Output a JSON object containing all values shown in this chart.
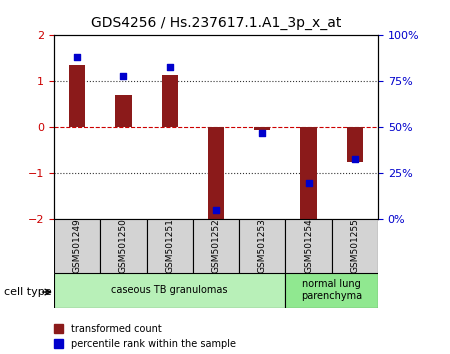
{
  "title": "GDS4256 / Hs.237617.1.A1_3p_x_at",
  "samples": [
    "GSM501249",
    "GSM501250",
    "GSM501251",
    "GSM501252",
    "GSM501253",
    "GSM501254",
    "GSM501255"
  ],
  "red_values": [
    1.35,
    0.7,
    1.15,
    -2.05,
    -0.05,
    -2.2,
    -0.75
  ],
  "blue_values": [
    88,
    78,
    83,
    5,
    47,
    20,
    33
  ],
  "ylim_left": [
    -2,
    2
  ],
  "ylim_right": [
    0,
    100
  ],
  "yticks_left": [
    -2,
    -1,
    0,
    1,
    2
  ],
  "yticks_right": [
    0,
    25,
    50,
    75,
    100
  ],
  "ytick_right_labels": [
    "0%",
    "25%",
    "50%",
    "75%",
    "100%"
  ],
  "groups": [
    {
      "label": "caseous TB granulomas",
      "start": 0,
      "end": 4,
      "color": "#b8f0b8"
    },
    {
      "label": "normal lung\nparenchyma",
      "start": 5,
      "end": 6,
      "color": "#90e890"
    }
  ],
  "red_color": "#8b1a1a",
  "blue_color": "#0000cc",
  "bar_width": 0.35,
  "marker_size": 8,
  "legend_red": "transformed count",
  "legend_blue": "percentile rank within the sample",
  "cell_type_label": "cell type",
  "dotted_line_color": "#333333",
  "zero_line_color": "#cc0000",
  "background_color": "#ffffff",
  "plot_bg_color": "#ffffff",
  "tick_label_color_left": "#cc0000",
  "tick_label_color_right": "#0000cc"
}
